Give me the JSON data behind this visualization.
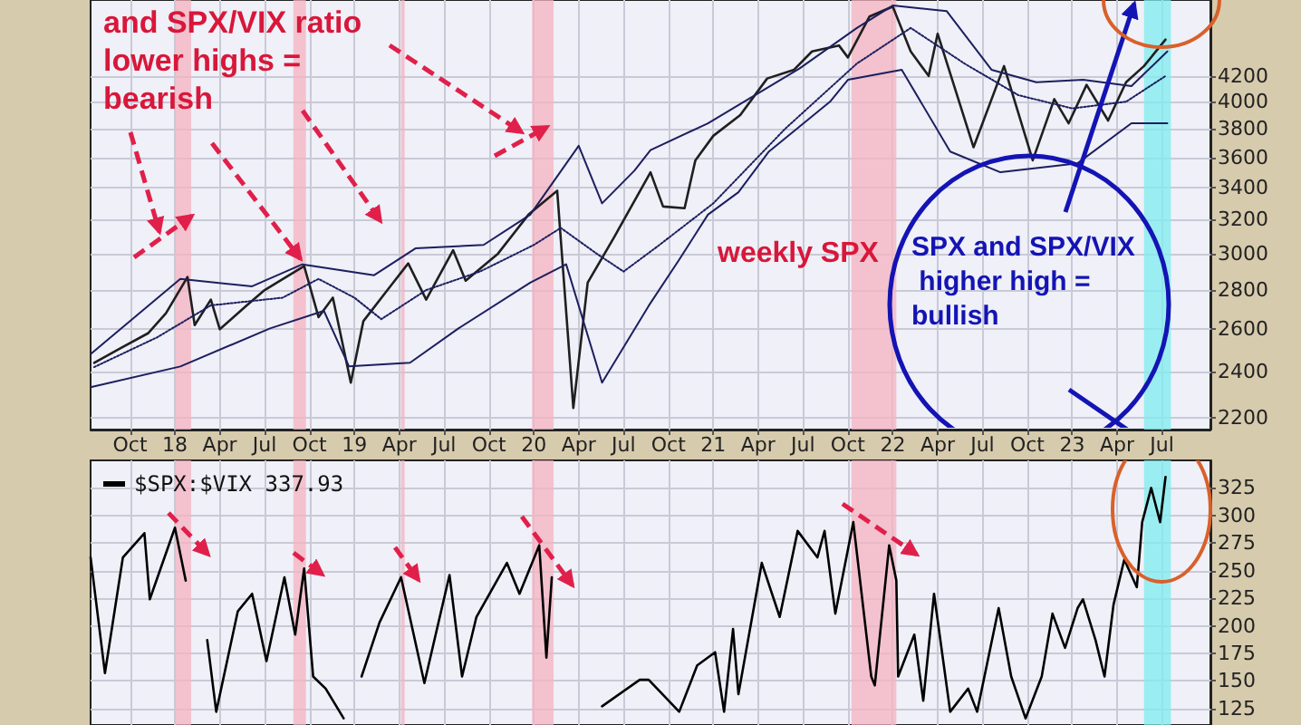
{
  "chart_data": [
    {
      "type": "line",
      "marker": "none",
      "grid": true,
      "log": true,
      "annotations": [
        {
          "text": "and SPX/VIX ratio lower highs = bearish",
          "x": 2018.72,
          "y": 2930
        },
        "weekly SPX",
        "SPX and SPX/VIX higher high = bullish"
      ],
      "xlim": [
        2017.53,
        2023.77
      ],
      "ylim": [
        2150,
        4850
      ],
      "xticks": [
        {
          "value": 2017.75,
          "label": "Oct"
        },
        {
          "value": 2018,
          "label": "18"
        },
        {
          "value": 2018.25,
          "label": "Apr"
        },
        {
          "value": 2018.5,
          "label": "Jul"
        },
        {
          "value": 2018.75,
          "label": "Oct"
        },
        {
          "value": 2019,
          "label": "19"
        },
        {
          "value": 2019.25,
          "label": "Apr"
        },
        {
          "value": 2019.5,
          "label": "Jul"
        },
        {
          "value": 2019.75,
          "label": "Oct"
        },
        {
          "value": 2020,
          "label": "20"
        },
        {
          "value": 2020.25,
          "label": "Apr"
        },
        {
          "value": 2020.5,
          "label": "Jul"
        },
        {
          "value": 2020.75,
          "label": "Oct"
        },
        {
          "value": 2021,
          "label": "21"
        },
        {
          "value": 2021.25,
          "label": "Apr"
        },
        {
          "value": 2021.5,
          "label": "Jul"
        },
        {
          "value": 2021.75,
          "label": "Oct"
        },
        {
          "value": 2022,
          "label": "22"
        },
        {
          "value": 2022.25,
          "label": "Apr"
        },
        {
          "value": 2022.5,
          "label": "Jul"
        },
        {
          "value": 2022.75,
          "label": "Oct"
        },
        {
          "value": 2023,
          "label": "23"
        },
        {
          "value": 2023.25,
          "label": "Apr"
        },
        {
          "value": 2023.5,
          "label": "Jul"
        }
      ],
      "yticks": [
        2200,
        2400,
        2600,
        2800,
        3000,
        3200,
        3400,
        3600,
        3800,
        4000,
        4200
      ],
      "bands": [
        {
          "axis": "x",
          "from": 2018.0,
          "to": 2018.09,
          "color": "#f4b3c0"
        },
        {
          "axis": "x",
          "from": 2018.66,
          "to": 2018.73,
          "color": "#f4b3c0"
        },
        {
          "axis": "x",
          "from": 2019.26,
          "to": 2019.28,
          "color": "#f4b3c0"
        },
        {
          "axis": "x",
          "from": 2019.99,
          "to": 2020.11,
          "color": "#f4b3c0"
        },
        {
          "axis": "x",
          "from": 2021.77,
          "to": 2022.02,
          "color": "#f4b3c0"
        },
        {
          "axis": "x",
          "from": 2023.4,
          "to": 2023.55,
          "color": "#7eeef0"
        }
      ],
      "series": [
        {
          "color": "#1f1f1f",
          "x": [
            2017.55,
            2017.7,
            2017.85,
            2017.95,
            2018.07,
            2018.11,
            2018.2,
            2018.25,
            2018.4,
            2018.5,
            2018.62,
            2018.72,
            2018.8,
            2018.88,
            2018.98,
            2019.05,
            2019.2,
            2019.3,
            2019.4,
            2019.55,
            2019.62,
            2019.8,
            2019.97,
            2020.13,
            2020.22,
            2020.3,
            2020.45,
            2020.65,
            2020.72,
            2020.84,
            2020.9,
            2021.0,
            2021.15,
            2021.3,
            2021.45,
            2021.55,
            2021.7,
            2021.75,
            2021.87,
            2022.0,
            2022.1,
            2022.2,
            2022.25,
            2022.45,
            2022.62,
            2022.78,
            2022.9,
            2022.98,
            2023.08,
            2023.2,
            2023.3,
            2023.4,
            2023.52
          ],
          "values": [
            2440,
            2510,
            2580,
            2680,
            2870,
            2620,
            2750,
            2600,
            2720,
            2800,
            2870,
            2930,
            2660,
            2760,
            2350,
            2640,
            2820,
            2945,
            2750,
            3020,
            2850,
            3000,
            3230,
            3380,
            2240,
            2840,
            3100,
            3500,
            3280,
            3270,
            3580,
            3750,
            3900,
            4180,
            4250,
            4400,
            4450,
            4350,
            4700,
            4790,
            4400,
            4200,
            4550,
            3670,
            4280,
            3580,
            4020,
            3840,
            4130,
            3860,
            4150,
            4280,
            4500
          ]
        },
        {
          "color": "#1c1f5e",
          "x": [
            2017.53,
            2018.03,
            2018.43,
            2018.71,
            2019.11,
            2019.34,
            2019.72,
            2019.98,
            2020.25,
            2020.38,
            2020.56,
            2020.65,
            2020.97,
            2021.48,
            2021.8,
            2022.0,
            2022.3,
            2022.55,
            2022.8,
            2023.06,
            2023.33,
            2023.53
          ],
          "values": [
            2480,
            2860,
            2820,
            2940,
            2880,
            3030,
            3050,
            3230,
            3680,
            3300,
            3510,
            3650,
            3840,
            4260,
            4600,
            4800,
            4750,
            4250,
            4150,
            4170,
            4120,
            4400
          ]
        },
        {
          "color": "#1c1f5e",
          "x": [
            2017.53,
            2018.03,
            2018.53,
            2018.83,
            2018.97,
            2019.31,
            2019.58,
            2019.98,
            2020.18,
            2020.38,
            2020.64,
            2020.81,
            2020.97,
            2021.14,
            2021.31,
            2021.65,
            2021.75,
            2022.05,
            2022.32,
            2022.6,
            2023.03,
            2023.33,
            2023.53
          ],
          "values": [
            2330,
            2423,
            2604,
            2692,
            2423,
            2440,
            2604,
            2840,
            2940,
            2350,
            2718,
            2966,
            3230,
            3370,
            3640,
            4000,
            4170,
            4250,
            3640,
            3500,
            3560,
            3840,
            3840
          ]
        },
        {
          "color": "#1c1f5e",
          "line_style": "dotted",
          "x": [
            2017.55,
            2017.9,
            2018.2,
            2018.6,
            2018.8,
            2019.0,
            2019.15,
            2019.4,
            2019.7,
            2020.0,
            2020.15,
            2020.35,
            2020.5,
            2020.7,
            2021.0,
            2021.4,
            2021.8,
            2022.1,
            2022.4,
            2022.7,
            2023.0,
            2023.3,
            2023.52
          ],
          "values": [
            2420,
            2560,
            2720,
            2760,
            2860,
            2760,
            2650,
            2800,
            2900,
            3050,
            3150,
            3000,
            2900,
            3050,
            3300,
            3800,
            4300,
            4600,
            4300,
            4050,
            3950,
            4000,
            4200
          ]
        }
      ]
    },
    {
      "type": "line",
      "marker": "none",
      "grid": true,
      "legend": "top left",
      "tick_labels": "y",
      "xlim": [
        2017.53,
        2023.77
      ],
      "ylim": [
        110,
        350
      ],
      "xticks": [
        2017.75,
        2018,
        2018.25,
        2018.5,
        2018.75,
        2019,
        2019.25,
        2019.5,
        2019.75,
        2020,
        2020.25,
        2020.5,
        2020.75,
        2021,
        2021.25,
        2021.5,
        2021.75,
        2022,
        2022.25,
        2022.5,
        2022.75,
        2023,
        2023.25,
        2023.5
      ],
      "yticks": [
        125,
        150,
        175,
        200,
        225,
        250,
        275,
        300,
        325
      ],
      "bands": [
        {
          "axis": "x",
          "from": 2018.0,
          "to": 2018.09,
          "color": "#f4b3c0"
        },
        {
          "axis": "x",
          "from": 2018.66,
          "to": 2018.73,
          "color": "#f4b3c0"
        },
        {
          "axis": "x",
          "from": 2019.26,
          "to": 2019.28,
          "color": "#f4b3c0"
        },
        {
          "axis": "x",
          "from": 2019.99,
          "to": 2020.11,
          "color": "#f4b3c0"
        },
        {
          "axis": "x",
          "from": 2021.77,
          "to": 2022.02,
          "color": "#f4b3c0"
        },
        {
          "axis": "x",
          "from": 2023.4,
          "to": 2023.55,
          "color": "#7eeef0"
        }
      ],
      "series": [
        {
          "name": "$SPX:$VIX 337.93",
          "color": "#000000",
          "x": [
            2017.53,
            2017.61,
            2017.71,
            2017.83,
            2017.86,
            2018.0,
            2018.06,
            2018.1,
            2018.18,
            2018.23,
            2018.35,
            2018.43,
            2018.51,
            2018.61,
            2018.67,
            2018.72,
            2018.77,
            2018.84,
            2018.94,
            2018.99,
            2019.04,
            2019.14,
            2019.26,
            2019.39,
            2019.53,
            2019.6,
            2019.68,
            2019.85,
            2019.92,
            2020.03,
            2020.07,
            2020.1,
            2020.15,
            2020.38,
            2020.59,
            2020.64,
            2020.81,
            2020.91,
            2021.01,
            2021.06,
            2021.11,
            2021.14,
            2021.27,
            2021.37,
            2021.47,
            2021.58,
            2021.62,
            2021.68,
            2021.78,
            2021.88,
            2021.9,
            2021.98,
            2022.02,
            2022.03,
            2022.12,
            2022.17,
            2022.23,
            2022.32,
            2022.42,
            2022.47,
            2022.59,
            2022.66,
            2022.74,
            2022.83,
            2022.89,
            2022.96,
            2023.03,
            2023.06,
            2023.13,
            2023.18,
            2023.23,
            2023.29,
            2023.36,
            2023.39,
            2023.44,
            2023.49,
            2023.52
          ],
          "values": [
            262,
            157,
            262,
            284,
            224,
            289,
            241,
            null,
            187,
            122,
            213,
            229,
            168,
            244,
            192,
            252,
            154,
            143,
            116,
            null,
            154,
            203,
            244,
            148,
            246,
            154,
            208,
            257,
            229,
            273,
            171,
            244,
            null,
            127,
            151,
            151,
            122,
            164,
            176,
            122,
            197,
            138,
            257,
            208,
            286,
            262,
            286,
            211,
            294,
            154,
            146,
            273,
            241,
            154,
            192,
            132,
            229,
            122,
            143,
            122,
            216,
            154,
            116,
            154,
            211,
            180,
            216,
            224,
            187,
            154,
            219,
            260,
            235,
            294,
            325,
            294,
            335
          ]
        }
      ]
    }
  ]
}
